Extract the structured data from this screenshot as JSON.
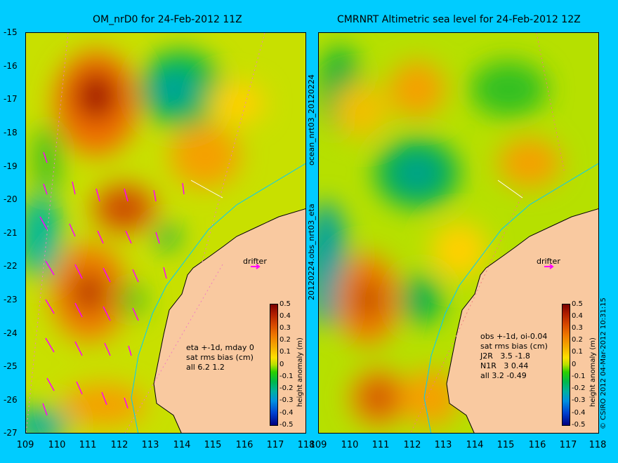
{
  "panels": [
    {
      "title": "OM_nrD0 for 24-Feb-2012 11Z",
      "notes": [
        "eta +-1d, mday 0",
        "sat rms bias (cm)",
        "all 6.2 1.2"
      ],
      "drifter_label": "drifter"
    },
    {
      "title": "CMRNRT Altimetric sea level  for 24-Feb-2012 12Z",
      "notes": [
        "obs +-1d, oi-0.04",
        "sat rms bias (cm)",
        "J2R   3.5 -1.8",
        "N1R   3 0.44",
        "all 3.2 -0.49"
      ],
      "drifter_label": "drifter"
    }
  ],
  "side_labels": {
    "top": "ocean_nrt03_20120224",
    "bottom": "20120224.obs_nrt03_eta"
  },
  "copyright": "© CSIRO 2012   04-Mar-2012 10:31:15",
  "y_ticks": [
    "-15",
    "-16",
    "-17",
    "-18",
    "-19",
    "-20",
    "-21",
    "-22",
    "-23",
    "-24",
    "-25",
    "-26",
    "-27"
  ],
  "x_ticks": [
    "109",
    "110",
    "111",
    "112",
    "113",
    "114",
    "115",
    "116",
    "117",
    "118"
  ],
  "colorbar": {
    "title": "height anomaly (m)",
    "labels": [
      "0.5",
      "0.4",
      "0.3",
      "0.2",
      "0.1",
      "0",
      "-0.1",
      "-0.2",
      "-0.3",
      "-0.4",
      "-0.5"
    ]
  },
  "colors": {
    "background": "#00ccff",
    "land": "#f9c9a0",
    "vectors": "#ff00ff"
  }
}
